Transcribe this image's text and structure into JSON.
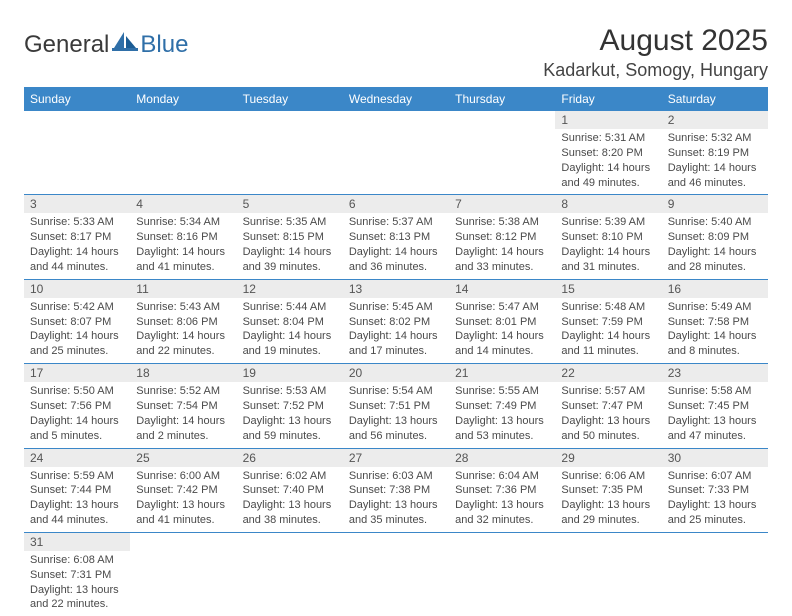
{
  "brand": {
    "general": "General",
    "blue": "Blue"
  },
  "title": {
    "month": "August 2025",
    "location": "Kadarkut, Somogy, Hungary"
  },
  "colors": {
    "header_bg": "#3b87c8",
    "header_fg": "#ffffff",
    "daynum_bg": "#ececec",
    "rule": "#3b87c8"
  },
  "weekdays": [
    "Sunday",
    "Monday",
    "Tuesday",
    "Wednesday",
    "Thursday",
    "Friday",
    "Saturday"
  ],
  "weeks": [
    [
      null,
      null,
      null,
      null,
      null,
      {
        "n": "1",
        "sr": "Sunrise: 5:31 AM",
        "ss": "Sunset: 8:20 PM",
        "dl1": "Daylight: 14 hours",
        "dl2": "and 49 minutes."
      },
      {
        "n": "2",
        "sr": "Sunrise: 5:32 AM",
        "ss": "Sunset: 8:19 PM",
        "dl1": "Daylight: 14 hours",
        "dl2": "and 46 minutes."
      }
    ],
    [
      {
        "n": "3",
        "sr": "Sunrise: 5:33 AM",
        "ss": "Sunset: 8:17 PM",
        "dl1": "Daylight: 14 hours",
        "dl2": "and 44 minutes."
      },
      {
        "n": "4",
        "sr": "Sunrise: 5:34 AM",
        "ss": "Sunset: 8:16 PM",
        "dl1": "Daylight: 14 hours",
        "dl2": "and 41 minutes."
      },
      {
        "n": "5",
        "sr": "Sunrise: 5:35 AM",
        "ss": "Sunset: 8:15 PM",
        "dl1": "Daylight: 14 hours",
        "dl2": "and 39 minutes."
      },
      {
        "n": "6",
        "sr": "Sunrise: 5:37 AM",
        "ss": "Sunset: 8:13 PM",
        "dl1": "Daylight: 14 hours",
        "dl2": "and 36 minutes."
      },
      {
        "n": "7",
        "sr": "Sunrise: 5:38 AM",
        "ss": "Sunset: 8:12 PM",
        "dl1": "Daylight: 14 hours",
        "dl2": "and 33 minutes."
      },
      {
        "n": "8",
        "sr": "Sunrise: 5:39 AM",
        "ss": "Sunset: 8:10 PM",
        "dl1": "Daylight: 14 hours",
        "dl2": "and 31 minutes."
      },
      {
        "n": "9",
        "sr": "Sunrise: 5:40 AM",
        "ss": "Sunset: 8:09 PM",
        "dl1": "Daylight: 14 hours",
        "dl2": "and 28 minutes."
      }
    ],
    [
      {
        "n": "10",
        "sr": "Sunrise: 5:42 AM",
        "ss": "Sunset: 8:07 PM",
        "dl1": "Daylight: 14 hours",
        "dl2": "and 25 minutes."
      },
      {
        "n": "11",
        "sr": "Sunrise: 5:43 AM",
        "ss": "Sunset: 8:06 PM",
        "dl1": "Daylight: 14 hours",
        "dl2": "and 22 minutes."
      },
      {
        "n": "12",
        "sr": "Sunrise: 5:44 AM",
        "ss": "Sunset: 8:04 PM",
        "dl1": "Daylight: 14 hours",
        "dl2": "and 19 minutes."
      },
      {
        "n": "13",
        "sr": "Sunrise: 5:45 AM",
        "ss": "Sunset: 8:02 PM",
        "dl1": "Daylight: 14 hours",
        "dl2": "and 17 minutes."
      },
      {
        "n": "14",
        "sr": "Sunrise: 5:47 AM",
        "ss": "Sunset: 8:01 PM",
        "dl1": "Daylight: 14 hours",
        "dl2": "and 14 minutes."
      },
      {
        "n": "15",
        "sr": "Sunrise: 5:48 AM",
        "ss": "Sunset: 7:59 PM",
        "dl1": "Daylight: 14 hours",
        "dl2": "and 11 minutes."
      },
      {
        "n": "16",
        "sr": "Sunrise: 5:49 AM",
        "ss": "Sunset: 7:58 PM",
        "dl1": "Daylight: 14 hours",
        "dl2": "and 8 minutes."
      }
    ],
    [
      {
        "n": "17",
        "sr": "Sunrise: 5:50 AM",
        "ss": "Sunset: 7:56 PM",
        "dl1": "Daylight: 14 hours",
        "dl2": "and 5 minutes."
      },
      {
        "n": "18",
        "sr": "Sunrise: 5:52 AM",
        "ss": "Sunset: 7:54 PM",
        "dl1": "Daylight: 14 hours",
        "dl2": "and 2 minutes."
      },
      {
        "n": "19",
        "sr": "Sunrise: 5:53 AM",
        "ss": "Sunset: 7:52 PM",
        "dl1": "Daylight: 13 hours",
        "dl2": "and 59 minutes."
      },
      {
        "n": "20",
        "sr": "Sunrise: 5:54 AM",
        "ss": "Sunset: 7:51 PM",
        "dl1": "Daylight: 13 hours",
        "dl2": "and 56 minutes."
      },
      {
        "n": "21",
        "sr": "Sunrise: 5:55 AM",
        "ss": "Sunset: 7:49 PM",
        "dl1": "Daylight: 13 hours",
        "dl2": "and 53 minutes."
      },
      {
        "n": "22",
        "sr": "Sunrise: 5:57 AM",
        "ss": "Sunset: 7:47 PM",
        "dl1": "Daylight: 13 hours",
        "dl2": "and 50 minutes."
      },
      {
        "n": "23",
        "sr": "Sunrise: 5:58 AM",
        "ss": "Sunset: 7:45 PM",
        "dl1": "Daylight: 13 hours",
        "dl2": "and 47 minutes."
      }
    ],
    [
      {
        "n": "24",
        "sr": "Sunrise: 5:59 AM",
        "ss": "Sunset: 7:44 PM",
        "dl1": "Daylight: 13 hours",
        "dl2": "and 44 minutes."
      },
      {
        "n": "25",
        "sr": "Sunrise: 6:00 AM",
        "ss": "Sunset: 7:42 PM",
        "dl1": "Daylight: 13 hours",
        "dl2": "and 41 minutes."
      },
      {
        "n": "26",
        "sr": "Sunrise: 6:02 AM",
        "ss": "Sunset: 7:40 PM",
        "dl1": "Daylight: 13 hours",
        "dl2": "and 38 minutes."
      },
      {
        "n": "27",
        "sr": "Sunrise: 6:03 AM",
        "ss": "Sunset: 7:38 PM",
        "dl1": "Daylight: 13 hours",
        "dl2": "and 35 minutes."
      },
      {
        "n": "28",
        "sr": "Sunrise: 6:04 AM",
        "ss": "Sunset: 7:36 PM",
        "dl1": "Daylight: 13 hours",
        "dl2": "and 32 minutes."
      },
      {
        "n": "29",
        "sr": "Sunrise: 6:06 AM",
        "ss": "Sunset: 7:35 PM",
        "dl1": "Daylight: 13 hours",
        "dl2": "and 29 minutes."
      },
      {
        "n": "30",
        "sr": "Sunrise: 6:07 AM",
        "ss": "Sunset: 7:33 PM",
        "dl1": "Daylight: 13 hours",
        "dl2": "and 25 minutes."
      }
    ],
    [
      {
        "n": "31",
        "sr": "Sunrise: 6:08 AM",
        "ss": "Sunset: 7:31 PM",
        "dl1": "Daylight: 13 hours",
        "dl2": "and 22 minutes."
      },
      null,
      null,
      null,
      null,
      null,
      null
    ]
  ]
}
